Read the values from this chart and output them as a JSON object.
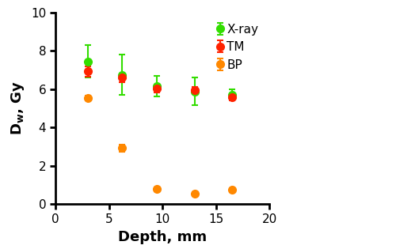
{
  "title": "",
  "xlabel": "Depth, mm",
  "ylabel": "D_w, Gy",
  "xlim": [
    0,
    20
  ],
  "ylim": [
    0,
    10
  ],
  "xticks": [
    0,
    5,
    10,
    15,
    20
  ],
  "yticks": [
    0,
    2,
    4,
    6,
    8,
    10
  ],
  "xray": {
    "label": "X-ray",
    "color": "#33dd00",
    "x": [
      3.0,
      6.2,
      9.5,
      13.0,
      16.5
    ],
    "y": [
      7.45,
      6.75,
      6.15,
      5.88,
      5.72
    ],
    "yerr": [
      0.85,
      1.05,
      0.55,
      0.72,
      0.28
    ]
  },
  "tm": {
    "label": "TM",
    "color": "#ff2200",
    "x": [
      3.0,
      6.2,
      9.5,
      13.0,
      16.5
    ],
    "y": [
      6.92,
      6.6,
      6.02,
      5.95,
      5.58
    ],
    "yerr": [
      0.25,
      0.22,
      0.2,
      0.15,
      0.18
    ]
  },
  "bp": {
    "label": "BP",
    "color": "#ff8800",
    "x": [
      3.0,
      6.2,
      9.5,
      13.0,
      16.5
    ],
    "y": [
      5.55,
      2.92,
      0.78,
      0.55,
      0.75
    ],
    "yerr": [
      0.12,
      0.18,
      0.1,
      0.08,
      0.1
    ]
  },
  "background_color": "#ffffff",
  "marker_size": 7,
  "capsize": 3,
  "elinewidth": 1.5,
  "capthick": 1.5,
  "spine_linewidth": 2.0,
  "tick_labelsize": 11,
  "xlabel_fontsize": 13,
  "ylabel_fontsize": 13,
  "legend_fontsize": 11
}
